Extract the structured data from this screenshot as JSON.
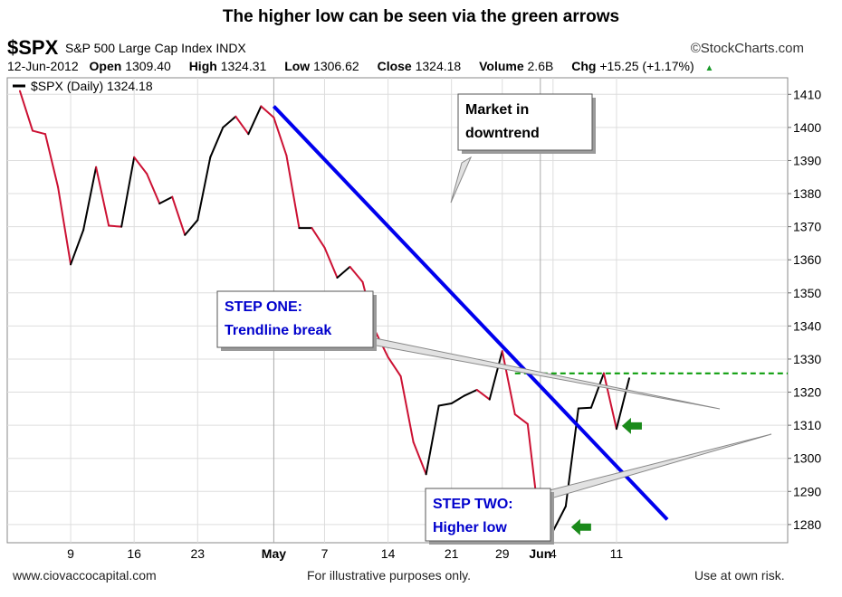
{
  "header": {
    "title": "The higher low can be seen via the green arrows",
    "symbol": "$SPX",
    "description": "S&P 500 Large Cap Index",
    "exchange": "INDX",
    "brand": "©StockCharts.com",
    "date": "12-Jun-2012",
    "open_label": "Open",
    "open": "1309.40",
    "high_label": "High",
    "high": "1324.31",
    "low_label": "Low",
    "low": "1306.62",
    "close_label": "Close",
    "close": "1324.18",
    "volume_label": "Volume",
    "volume": "2.6B",
    "chg_label": "Chg",
    "chg": "+15.25 (+1.17%)"
  },
  "chart_data": {
    "type": "line",
    "legend": "$SPX (Daily) 1324.18",
    "legend_position": "top-left",
    "grid": true,
    "ylim": [
      1274.5,
      1415
    ],
    "yticks": [
      1280,
      1290,
      1300,
      1310,
      1320,
      1330,
      1340,
      1350,
      1360,
      1370,
      1380,
      1390,
      1400,
      1410
    ],
    "xticks": [
      {
        "label": "9",
        "idx": 5,
        "bold": false
      },
      {
        "label": "16",
        "idx": 10,
        "bold": false
      },
      {
        "label": "23",
        "idx": 15,
        "bold": false
      },
      {
        "label": "May",
        "idx": 21,
        "bold": true
      },
      {
        "label": "7",
        "idx": 25,
        "bold": false
      },
      {
        "label": "14",
        "idx": 30,
        "bold": false
      },
      {
        "label": "21",
        "idx": 35,
        "bold": false
      },
      {
        "label": "29",
        "idx": 39,
        "bold": false
      },
      {
        "label": "Jun",
        "idx": 42,
        "bold": true
      },
      {
        "label": "4",
        "idx": 43,
        "bold": false
      },
      {
        "label": "11",
        "idx": 48,
        "bold": false
      }
    ],
    "x_first_index": 1,
    "x_last_index": 49,
    "series": [
      {
        "values": [
          1411,
          1399,
          1398,
          1382,
          1358.6,
          1369,
          1388,
          1370.3,
          1370,
          1391,
          1386,
          1377,
          1379,
          1367.5,
          1372,
          1391,
          1400,
          1403.3,
          1398,
          1406.4,
          1403,
          1391.5,
          1369.6,
          1369.6,
          1363.7,
          1354.6,
          1357.9,
          1353.3,
          1338.4,
          1330.6,
          1324.8,
          1304.9,
          1295.2,
          1315.9,
          1316.6,
          1318.9,
          1320.7,
          1317.8,
          1332.4,
          1313.3,
          1310.4,
          1278,
          1278,
          1285.5,
          1315.1,
          1315.3,
          1325.7,
          1308.9,
          1324.18
        ],
        "up_color": "#000000",
        "down_color": "#cc1133"
      }
    ],
    "trendline": {
      "from_idx": 21,
      "from_value": 1406.4,
      "to_idx": 52,
      "to_value": 1281.5,
      "color": "#0000ee"
    },
    "resistance_level": {
      "value": 1325.7,
      "from_idx": 40,
      "color": "#009900"
    },
    "callouts": [
      {
        "lines": [
          "Market in",
          "downtrend"
        ],
        "color": "#000000"
      },
      {
        "lines": [
          "STEP ONE:",
          "Trendline break"
        ],
        "color": "#0000cc"
      },
      {
        "lines": [
          "STEP TWO:",
          "Higher low"
        ],
        "color": "#0000cc"
      }
    ],
    "arrows": [
      {
        "name": "higher-low-arrow",
        "idx": 48,
        "value": 1309.8,
        "color": "#1a8a1a"
      },
      {
        "name": "low-arrow",
        "idx": 44,
        "value": 1279.2,
        "color": "#1a8a1a"
      }
    ]
  },
  "footer": {
    "left": "www.ciovaccocapital.com",
    "center": "For illustrative purposes only.",
    "right": "Use at own risk."
  }
}
